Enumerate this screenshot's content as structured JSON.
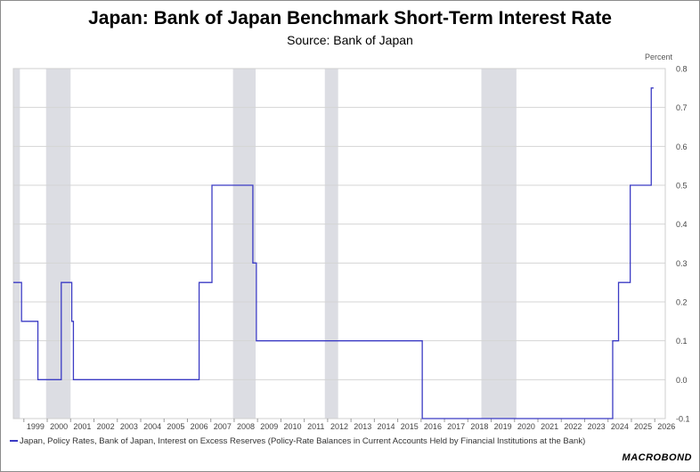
{
  "chart_data": {
    "type": "line",
    "title": "Japan: Bank of Japan Benchmark Short-Term Interest Rate",
    "subtitle": "Source: Bank of Japan",
    "ylabel": "Percent",
    "ylim": [
      -0.1,
      0.8
    ],
    "yticks": [
      "0.8",
      "0.7",
      "0.6",
      "0.5",
      "0.4",
      "0.3",
      "0.2",
      "0.1",
      "0.0",
      "-0.1"
    ],
    "ytick_values": [
      0.8,
      0.7,
      0.6,
      0.5,
      0.4,
      0.3,
      0.2,
      0.1,
      0.0,
      -0.1
    ],
    "xlim": [
      1998.55,
      2026.45
    ],
    "xticks": [
      "1999",
      "2000",
      "2001",
      "2002",
      "2003",
      "2004",
      "2005",
      "2006",
      "2007",
      "2008",
      "2009",
      "2010",
      "2011",
      "2012",
      "2013",
      "2014",
      "2015",
      "2016",
      "2017",
      "2018",
      "2019",
      "2020",
      "2021",
      "2022",
      "2023",
      "2024",
      "2025",
      "2026"
    ],
    "grid": true,
    "recession_bands": [
      [
        1998.55,
        1998.83
      ],
      [
        1999.95,
        2001.0
      ],
      [
        2007.95,
        2008.92
      ],
      [
        2011.88,
        2012.45
      ],
      [
        2018.58,
        2020.08
      ]
    ],
    "series": [
      {
        "name": "Japan, Policy Rates, Bank of Japan, Interest on Excess Reserves (Policy-Rate Balances in Current Accounts Held by Financial Institutions at the Bank)",
        "color": "#3b3bc4",
        "step": true,
        "x": [
          1998.55,
          1998.9,
          1999.6,
          2000.6,
          2001.05,
          2001.12,
          2006.5,
          2007.05,
          2008.8,
          2008.95,
          2016.05,
          2024.2,
          2024.45,
          2024.95,
          2025.85
        ],
        "y": [
          0.25,
          0.15,
          0.0,
          0.25,
          0.15,
          0.0,
          0.25,
          0.5,
          0.3,
          0.1,
          -0.1,
          0.1,
          0.25,
          0.5,
          0.75
        ],
        "end_x": 2025.95
      }
    ],
    "legend_position": "bottom-left"
  },
  "brand": "MACROBOND"
}
